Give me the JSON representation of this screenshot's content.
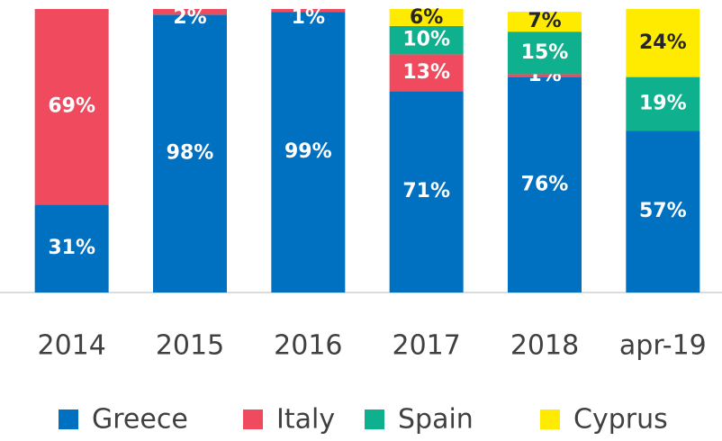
{
  "chart_data": {
    "type": "stacked_bar",
    "categories": [
      "2014",
      "2015",
      "2016",
      "2017",
      "2018",
      "apr-19"
    ],
    "ylim": [
      0,
      100
    ],
    "legend": "bottom",
    "series": [
      {
        "name": "Greece",
        "color": "#0070c0",
        "values": [
          31,
          98,
          99,
          71,
          76,
          57
        ],
        "value_labels": [
          "31%",
          "98%",
          "99%",
          "71%",
          "76%",
          "57%"
        ]
      },
      {
        "name": "Italy",
        "color": "#f04a5f",
        "values": [
          69,
          2,
          1,
          13,
          1,
          null
        ],
        "value_labels": [
          "69%",
          "2%",
          "1%",
          "13%",
          "1%",
          null
        ]
      },
      {
        "name": "Spain",
        "color": "#0fb08e",
        "values": [
          null,
          null,
          null,
          10,
          15,
          19
        ],
        "value_labels": [
          null,
          null,
          null,
          "10%",
          "15%",
          "19%"
        ]
      },
      {
        "name": "Cyprus",
        "color": "#ffeb00",
        "values": [
          null,
          null,
          null,
          6,
          7,
          24
        ],
        "value_labels": [
          null,
          null,
          null,
          "6%",
          "7%",
          "24%"
        ]
      }
    ]
  }
}
